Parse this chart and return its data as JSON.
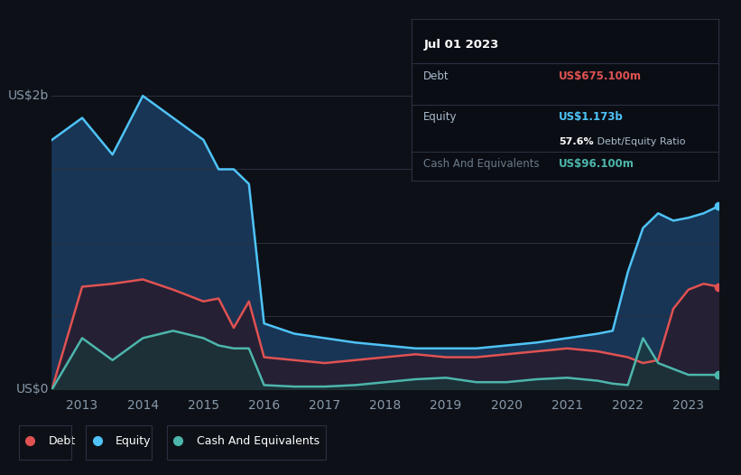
{
  "background_color": "#0d1117",
  "debt_color": "#e05252",
  "equity_color": "#4fc3f7",
  "cash_color": "#4db6ac",
  "equity_fill_color": "#1a3a5c",
  "debt_fill_color": "#2a1a2a",
  "cash_fill_color": "#1a3a3a",
  "legend_bg": "#1a1f2e",
  "legend_border": "#2a3040",
  "tooltip_bg": "#0a0e14",
  "tooltip_border": "#2a3040",
  "years": [
    2012.5,
    2013.0,
    2013.5,
    2014.0,
    2014.5,
    2015.0,
    2015.25,
    2015.5,
    2015.75,
    2016.0,
    2016.5,
    2017.0,
    2017.5,
    2018.0,
    2018.5,
    2019.0,
    2019.5,
    2020.0,
    2020.5,
    2021.0,
    2021.5,
    2021.75,
    2022.0,
    2022.25,
    2022.5,
    2022.75,
    2023.0,
    2023.25,
    2023.5
  ],
  "equity": [
    1.7,
    1.85,
    1.6,
    2.0,
    1.85,
    1.7,
    1.5,
    1.5,
    1.4,
    0.45,
    0.38,
    0.35,
    0.32,
    0.3,
    0.28,
    0.28,
    0.28,
    0.3,
    0.32,
    0.35,
    0.38,
    0.4,
    0.8,
    1.1,
    1.2,
    1.15,
    1.17,
    1.2,
    1.25
  ],
  "debt": [
    0.0,
    0.7,
    0.72,
    0.75,
    0.68,
    0.6,
    0.62,
    0.42,
    0.6,
    0.22,
    0.2,
    0.18,
    0.2,
    0.22,
    0.24,
    0.22,
    0.22,
    0.24,
    0.26,
    0.28,
    0.26,
    0.24,
    0.22,
    0.18,
    0.2,
    0.55,
    0.68,
    0.72,
    0.7
  ],
  "cash": [
    0.0,
    0.35,
    0.2,
    0.35,
    0.4,
    0.35,
    0.3,
    0.28,
    0.28,
    0.03,
    0.02,
    0.02,
    0.03,
    0.05,
    0.07,
    0.08,
    0.05,
    0.05,
    0.07,
    0.08,
    0.06,
    0.04,
    0.03,
    0.35,
    0.18,
    0.14,
    0.1,
    0.1,
    0.1
  ],
  "tooltip_date": "Jul 01 2023",
  "tooltip_debt_label": "Debt",
  "tooltip_debt": "US$675.100m",
  "tooltip_equity_label": "Equity",
  "tooltip_equity": "US$1.173b",
  "tooltip_ratio": "57.6%",
  "tooltip_ratio_text": " Debt/Equity Ratio",
  "tooltip_cash_label": "Cash And Equivalents",
  "tooltip_cash": "US$96.100m",
  "ylim_max": 2.2,
  "grid_color": "#2a3040",
  "tick_color": "#8899aa",
  "label_color": "#aabbcc",
  "cash_label_color": "#6a7a8a",
  "tick_positions": [
    2013,
    2014,
    2015,
    2016,
    2017,
    2018,
    2019,
    2020,
    2021,
    2022,
    2023
  ]
}
